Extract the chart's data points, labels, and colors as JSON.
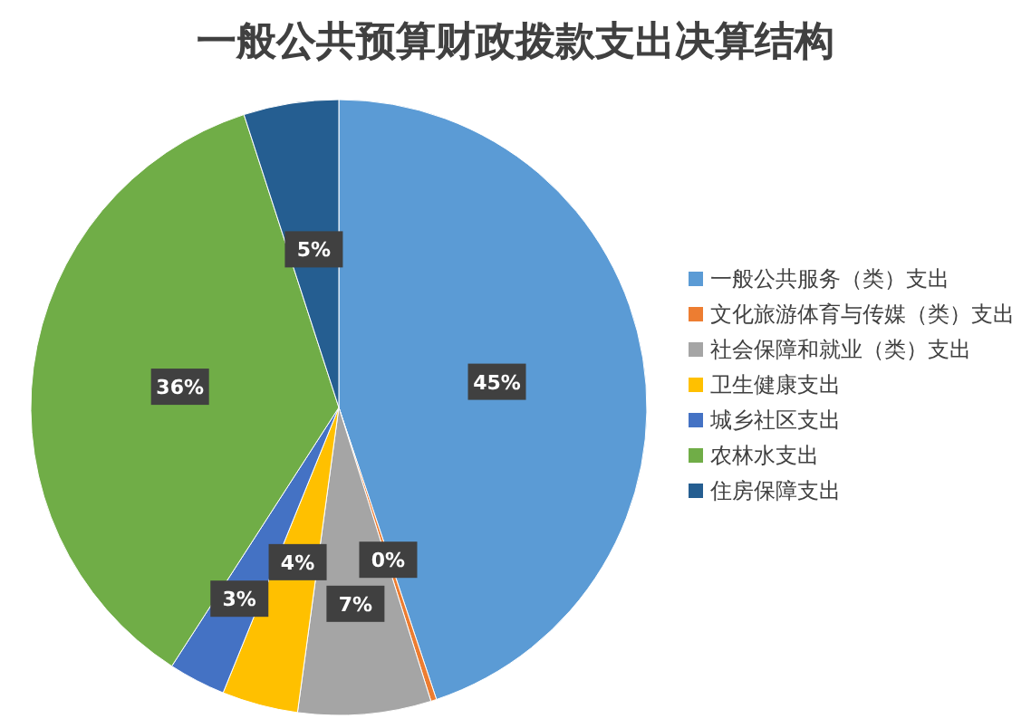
{
  "chart_data": {
    "type": "pie",
    "title": "一般公共预算财政拨款支出决算结构",
    "categories": [
      "一般公共服务（类）支出",
      "文化旅游体育与传媒（类）支出",
      "社会保障和就业（类）支出",
      "卫生健康支出",
      "城乡社区支出",
      "农林水支出",
      "住房保障支出"
    ],
    "values": [
      45,
      0.3,
      7,
      4,
      3,
      36,
      5
    ],
    "value_labels": [
      "45%",
      "0%",
      "7%",
      "4%",
      "3%",
      "36%",
      "5%"
    ],
    "colors": [
      "#5b9bd5",
      "#ed7d31",
      "#a5a5a5",
      "#ffc000",
      "#4472c4",
      "#70ad47",
      "#255e91"
    ],
    "legend": "right"
  }
}
